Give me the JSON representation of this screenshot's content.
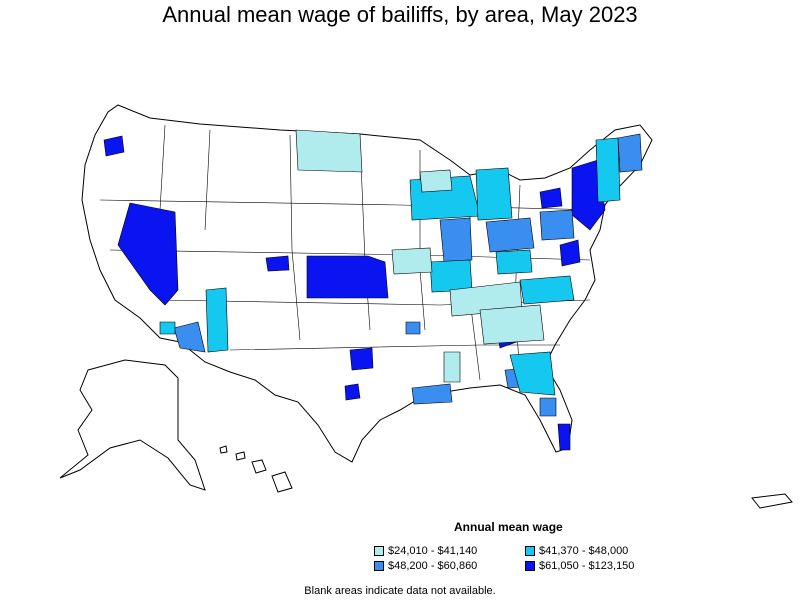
{
  "title": "Annual mean wage of bailiffs, by area, May 2023",
  "legend": {
    "title": "Annual mean wage",
    "items": [
      {
        "label": "$24,010 - $41,140",
        "color": "#b0ecee"
      },
      {
        "label": "$41,370 - $48,000",
        "color": "#14c8f0"
      },
      {
        "label": "$48,200 - $60,860",
        "color": "#3a8ef0"
      },
      {
        "label": "$61,050 - $123,150",
        "color": "#0a14f0"
      }
    ]
  },
  "note": "Blank areas indicate data not available.",
  "colors": {
    "outline": "#000000",
    "blank": "#ffffff"
  }
}
